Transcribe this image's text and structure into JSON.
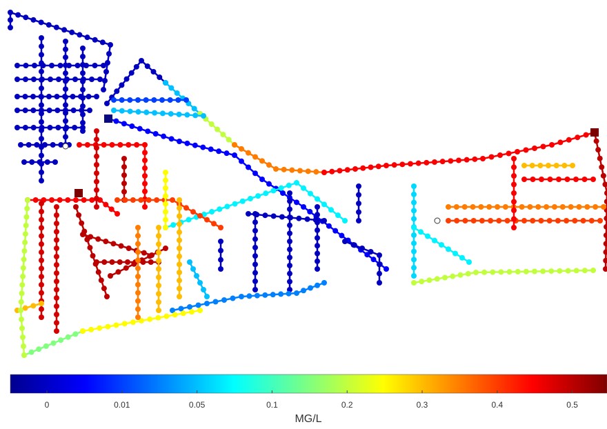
{
  "chart_data": {
    "type": "network",
    "values": [
      0,
      0,
      0,
      0,
      0,
      0,
      0,
      0,
      0,
      0,
      0,
      0.005,
      0,
      0.05,
      0.2,
      0.35,
      0.01,
      0.05,
      0.45,
      0.5,
      0.35,
      0.4,
      0.2,
      0.45,
      0.45,
      0.3,
      0,
      0,
      0,
      0,
      0,
      0,
      0,
      0.07,
      0.06,
      0.07,
      0.05,
      0.03,
      0.45,
      0.48,
      0.48,
      0.5,
      0.5,
      0.5,
      0.5,
      0.15,
      0.25,
      0.3,
      0.2,
      0.45,
      0.48,
      0.5,
      0.4,
      0.25,
      0.3,
      0.35,
      0.3
    ],
    "colorbar": {
      "ticks": [
        0,
        0.01,
        0.05,
        0.1,
        0.2,
        0.3,
        0.4,
        0.5
      ],
      "label": "MG/L"
    }
  }
}
